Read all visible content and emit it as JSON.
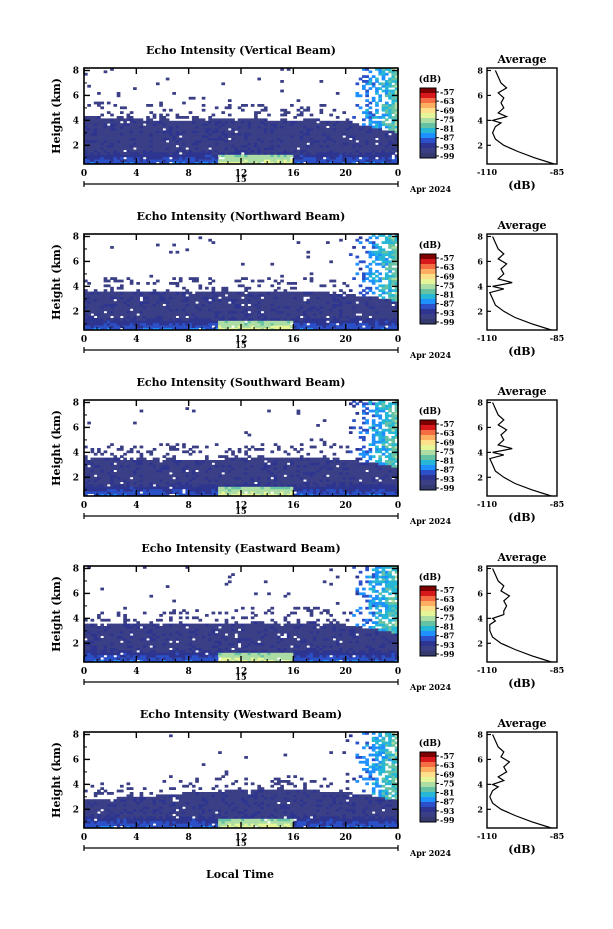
{
  "figure": {
    "xlabel": "Local Time",
    "date_label": "Apr 2024",
    "day_label": "15",
    "colorbar_unit": "(dB)",
    "colorbar_ticks": [
      "-57",
      "-63",
      "-69",
      "-75",
      "-81",
      "-87",
      "-93",
      "-99"
    ],
    "colorbar_colors": [
      "#7f0000",
      "#d7191c",
      "#f46d43",
      "#fdae61",
      "#fee08b",
      "#e6f598",
      "#abdda4",
      "#66c2a5",
      "#26b7d6",
      "#1e90ff",
      "#2b50c8",
      "#2d3590",
      "#3a3f86",
      "#353a6e"
    ],
    "avg_title": "Average",
    "avg_xlabel": "(dB)"
  },
  "chart_data": [
    {
      "type": "heatmap",
      "title": "Echo Intensity (Vertical Beam)",
      "ylabel": "Height (km)",
      "x_ticks": [
        "0",
        "4",
        "8",
        "12",
        "16",
        "20",
        "0"
      ],
      "xlim": [
        0,
        24
      ],
      "y_ticks": [
        "2",
        "4",
        "6",
        "8"
      ],
      "ylim": [
        0.5,
        8.2
      ],
      "dense_top_km": [
        4.3,
        4.2,
        4.1,
        4.0,
        4.0,
        4.2,
        4.1,
        4.0,
        4.1,
        3.9,
        3.5,
        3.0
      ],
      "color_range_db": [
        -99,
        -57
      ],
      "average": {
        "title": "Average",
        "xlabel": "(dB)",
        "x_ticks": [
          "-110",
          "-85"
        ],
        "xlim": [
          -110,
          -85
        ],
        "y_ticks": [
          "2",
          "4",
          "6",
          "8"
        ],
        "heights_km": [
          0.5,
          1.0,
          1.5,
          2.0,
          2.5,
          3.0,
          3.5,
          3.8,
          4.0,
          4.3,
          4.6,
          5.0,
          5.4,
          5.8,
          6.2,
          6.6,
          7.0,
          7.5,
          8.0
        ],
        "values_db": [
          -86,
          -93,
          -99,
          -104,
          -107,
          -108,
          -107,
          -105,
          -108,
          -103,
          -106,
          -104,
          -105,
          -104,
          -106,
          -103,
          -105,
          -106,
          -107
        ]
      }
    },
    {
      "type": "heatmap",
      "title": "Echo Intensity (Northward Beam)",
      "ylabel": "Height (km)",
      "x_ticks": [
        "0",
        "4",
        "8",
        "12",
        "16",
        "20",
        "0"
      ],
      "xlim": [
        0,
        24
      ],
      "y_ticks": [
        "2",
        "4",
        "6",
        "8"
      ],
      "ylim": [
        0.5,
        8.2
      ],
      "dense_top_km": [
        3.6,
        3.6,
        3.5,
        3.6,
        3.5,
        3.5,
        3.6,
        3.5,
        3.6,
        3.4,
        3.2,
        2.8
      ],
      "color_range_db": [
        -99,
        -57
      ],
      "average": {
        "title": "Average",
        "xlabel": "(dB)",
        "x_ticks": [
          "-110",
          "-85"
        ],
        "xlim": [
          -110,
          -85
        ],
        "y_ticks": [
          "2",
          "4",
          "6",
          "8"
        ],
        "heights_km": [
          0.5,
          1.0,
          1.5,
          2.0,
          2.5,
          3.0,
          3.5,
          3.8,
          4.0,
          4.3,
          4.6,
          5.0,
          5.4,
          5.8,
          6.2,
          6.6,
          7.0,
          7.5,
          8.0
        ],
        "values_db": [
          -87,
          -94,
          -100,
          -104,
          -107,
          -108,
          -109,
          -104,
          -108,
          -101,
          -106,
          -104,
          -105,
          -103,
          -106,
          -104,
          -106,
          -107,
          -108
        ]
      }
    },
    {
      "type": "heatmap",
      "title": "Echo Intensity (Southward Beam)",
      "ylabel": "Height (km)",
      "x_ticks": [
        "0",
        "4",
        "8",
        "12",
        "16",
        "20",
        "0"
      ],
      "xlim": [
        0,
        24
      ],
      "y_ticks": [
        "2",
        "4",
        "6",
        "8"
      ],
      "ylim": [
        0.5,
        8.2
      ],
      "dense_top_km": [
        3.5,
        3.5,
        3.4,
        3.5,
        3.4,
        3.5,
        3.6,
        3.5,
        3.6,
        3.4,
        3.2,
        2.8
      ],
      "color_range_db": [
        -99,
        -57
      ],
      "average": {
        "title": "Average",
        "xlabel": "(dB)",
        "x_ticks": [
          "-110",
          "-85"
        ],
        "xlim": [
          -110,
          -85
        ],
        "y_ticks": [
          "2",
          "4",
          "6",
          "8"
        ],
        "heights_km": [
          0.5,
          1.0,
          1.5,
          2.0,
          2.5,
          3.0,
          3.5,
          3.8,
          4.0,
          4.3,
          4.6,
          5.0,
          5.4,
          5.8,
          6.2,
          6.6,
          7.0,
          7.5,
          8.0
        ],
        "values_db": [
          -87,
          -94,
          -100,
          -104,
          -107,
          -108,
          -109,
          -104,
          -108,
          -101,
          -106,
          -104,
          -105,
          -103,
          -106,
          -104,
          -106,
          -107,
          -108
        ]
      }
    },
    {
      "type": "heatmap",
      "title": "Echo Intensity (Eastward Beam)",
      "ylabel": "Height (km)",
      "x_ticks": [
        "0",
        "4",
        "8",
        "12",
        "16",
        "20",
        "0"
      ],
      "xlim": [
        0,
        24
      ],
      "y_ticks": [
        "2",
        "4",
        "6",
        "8"
      ],
      "ylim": [
        0.5,
        8.2
      ],
      "dense_top_km": [
        3.6,
        3.6,
        3.5,
        3.6,
        3.5,
        3.6,
        3.7,
        3.6,
        3.7,
        3.5,
        3.2,
        2.8
      ],
      "color_range_db": [
        -99,
        -57
      ],
      "average": {
        "title": "Average",
        "xlabel": "(dB)",
        "x_ticks": [
          "-110",
          "-85"
        ],
        "xlim": [
          -110,
          -85
        ],
        "y_ticks": [
          "2",
          "4",
          "6",
          "8"
        ],
        "heights_km": [
          0.5,
          1.0,
          1.5,
          2.0,
          2.5,
          3.0,
          3.5,
          3.8,
          4.0,
          4.3,
          4.6,
          5.0,
          5.4,
          5.8,
          6.2,
          6.6,
          7.0,
          7.5,
          8.0
        ],
        "values_db": [
          -87,
          -94,
          -100,
          -105,
          -108,
          -109,
          -109,
          -107,
          -108,
          -104,
          -104,
          -103,
          -104,
          -102,
          -105,
          -104,
          -106,
          -107,
          -108
        ]
      }
    },
    {
      "type": "heatmap",
      "title": "Echo Intensity (Westward Beam)",
      "ylabel": "Height (km)",
      "x_ticks": [
        "0",
        "4",
        "8",
        "12",
        "16",
        "20",
        "0"
      ],
      "xlim": [
        0,
        24
      ],
      "y_ticks": [
        "2",
        "4",
        "6",
        "8"
      ],
      "ylim": [
        0.5,
        8.2
      ],
      "dense_top_km": [
        2.9,
        2.9,
        3.0,
        3.2,
        3.4,
        3.5,
        3.6,
        3.5,
        3.5,
        3.4,
        3.1,
        2.7
      ],
      "color_range_db": [
        -99,
        -57
      ],
      "average": {
        "title": "Average",
        "xlabel": "(dB)",
        "x_ticks": [
          "-110",
          "-85"
        ],
        "xlim": [
          -110,
          -85
        ],
        "y_ticks": [
          "2",
          "4",
          "6",
          "8"
        ],
        "heights_km": [
          0.5,
          1.0,
          1.5,
          2.0,
          2.5,
          3.0,
          3.5,
          3.8,
          4.0,
          4.3,
          4.6,
          5.0,
          5.4,
          5.8,
          6.2,
          6.6,
          7.0,
          7.5,
          8.0
        ],
        "values_db": [
          -87,
          -94,
          -100,
          -105,
          -108,
          -109,
          -108,
          -106,
          -108,
          -104,
          -106,
          -103,
          -104,
          -102,
          -105,
          -104,
          -106,
          -107,
          -108
        ]
      }
    }
  ]
}
